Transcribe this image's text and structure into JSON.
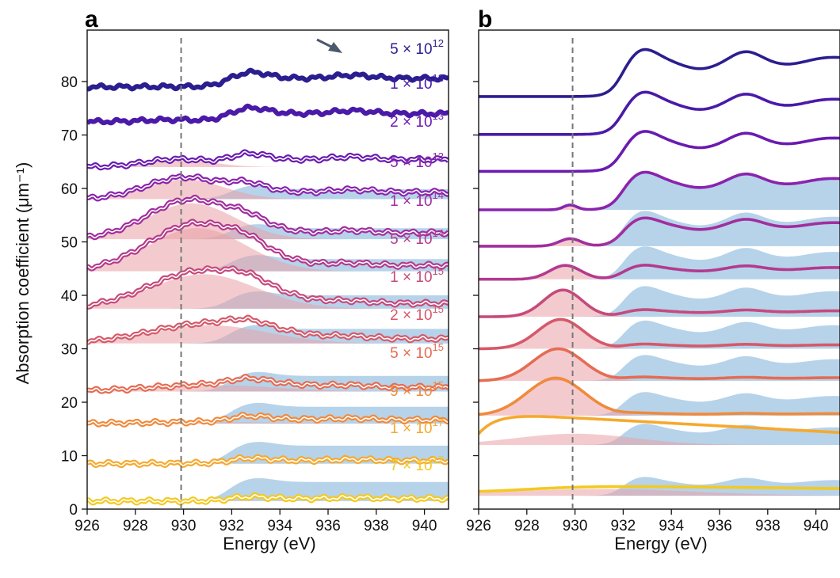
{
  "chart_data": [
    {
      "type": "line",
      "panel": "a",
      "title": "a",
      "xlabel": "Energy (eV)",
      "ylabel": "Absorption coefficient (μm⁻¹)",
      "xlim": [
        926,
        941
      ],
      "ylim": [
        0,
        88
      ],
      "xticks": [
        "926",
        "928",
        "930",
        "932",
        "934",
        "936",
        "938",
        "940"
      ],
      "yticks": [
        "0",
        "10",
        "20",
        "30",
        "40",
        "50",
        "60",
        "70",
        "80"
      ],
      "reference_line_x": 929.9,
      "annotation": "arrow pointing at spectrum near 936.7 eV",
      "series": [
        {
          "mantissa": "5",
          "exponent": "12",
          "offset": 79.0,
          "color": "#2b1e8f"
        },
        {
          "mantissa": "1",
          "exponent": "13",
          "offset": 72.5,
          "color": "#4a1aa8"
        },
        {
          "mantissa": "2",
          "exponent": "13",
          "offset": 64.0,
          "color": "#6a1bb0"
        },
        {
          "mantissa": "5",
          "exponent": "13",
          "offset": 58.0,
          "color": "#8a23ad"
        },
        {
          "mantissa": "1",
          "exponent": "14",
          "offset": 50.5,
          "color": "#a12e9e"
        },
        {
          "mantissa": "5",
          "exponent": "14",
          "offset": 44.5,
          "color": "#b43a8e"
        },
        {
          "mantissa": "1",
          "exponent": "15",
          "offset": 37.5,
          "color": "#c64a7c"
        },
        {
          "mantissa": "2",
          "exponent": "15",
          "offset": 31.0,
          "color": "#d5596a"
        },
        {
          "mantissa": "5",
          "exponent": "15",
          "offset": 22.0,
          "color": "#e56c53"
        },
        {
          "mantissa": "9",
          "exponent": "15",
          "offset": 16.0,
          "color": "#f08a3c"
        },
        {
          "mantissa": "1",
          "exponent": "17",
          "offset": 8.5,
          "color": "#f6a92e"
        },
        {
          "mantissa": "7",
          "exponent": "17",
          "offset": 1.5,
          "color": "#f3c922"
        }
      ]
    },
    {
      "type": "line",
      "panel": "b",
      "title": "b",
      "xlabel": "Energy (eV)",
      "xlim": [
        926,
        941
      ],
      "ylim": [
        0,
        88
      ],
      "xticks": [
        "926",
        "928",
        "930",
        "932",
        "934",
        "936",
        "938",
        "940"
      ],
      "reference_line_x": 929.9,
      "series_offsets": [
        77.2,
        70.1,
        63.2,
        56.0,
        49.2,
        43.0,
        36.0,
        30.0,
        24.0,
        17.5,
        12.0,
        2.5
      ]
    }
  ]
}
